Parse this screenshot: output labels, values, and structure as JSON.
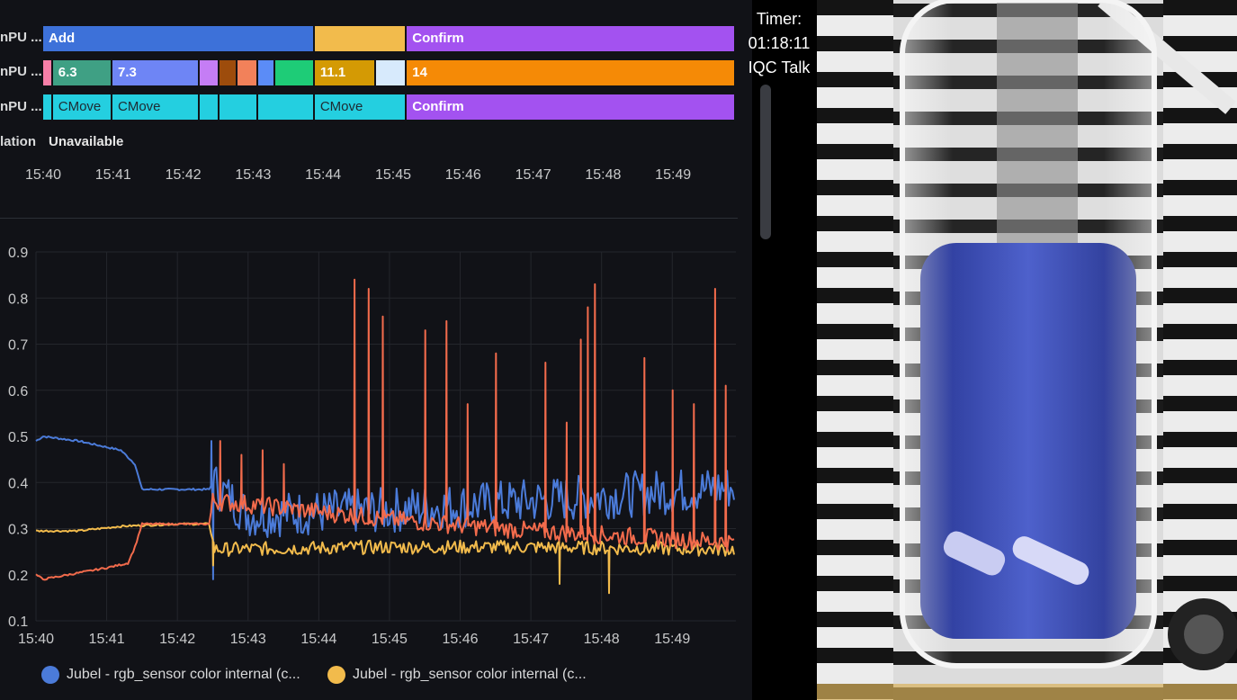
{
  "state_rows": [
    {
      "label": "nPU ...",
      "segments": [
        {
          "start": 0,
          "end": 3.92,
          "color": "#3d71d9",
          "text": ""
        },
        {
          "start": 0,
          "end": 3.92,
          "color": "#3d71d9",
          "text": "Add"
        },
        {
          "start": 3.92,
          "end": 5.25,
          "color": "#f2bb4c",
          "text": ""
        },
        {
          "start": 5.25,
          "end": 10.0,
          "color": "#a352f0",
          "text": "Confirm"
        }
      ]
    },
    {
      "label": "nPU ...",
      "segments": [
        {
          "start": 0,
          "end": 0.14,
          "color": "#f77fa8",
          "text": ""
        },
        {
          "start": 0.14,
          "end": 1.0,
          "color": "#3fa084",
          "text": "6.3"
        },
        {
          "start": 1.0,
          "end": 2.26,
          "color": "#6e85f5",
          "text": "7.3"
        },
        {
          "start": 2.26,
          "end": 2.54,
          "color": "#c57df5",
          "text": ""
        },
        {
          "start": 2.54,
          "end": 2.8,
          "color": "#9d4c0c",
          "text": ""
        },
        {
          "start": 2.8,
          "end": 3.1,
          "color": "#f2815a",
          "text": ""
        },
        {
          "start": 3.1,
          "end": 3.35,
          "color": "#5b8cf7",
          "text": ""
        },
        {
          "start": 3.35,
          "end": 3.92,
          "color": "#1ecc77",
          "text": ""
        },
        {
          "start": 3.92,
          "end": 4.8,
          "color": "#d49a04",
          "text": "11.1"
        },
        {
          "start": 4.8,
          "end": 5.25,
          "color": "#d7eafc",
          "text": ""
        },
        {
          "start": 5.25,
          "end": 10.0,
          "color": "#f58a06",
          "text": "14"
        }
      ]
    },
    {
      "label": "nPU ...",
      "segments": [
        {
          "start": 0,
          "end": 0.14,
          "color": "#24cfe0",
          "text": ""
        },
        {
          "start": 0.14,
          "end": 1.0,
          "color": "#24cfe0",
          "text": "CMove"
        },
        {
          "start": 1.0,
          "end": 2.26,
          "color": "#24cfe0",
          "text": "CMove"
        },
        {
          "start": 2.26,
          "end": 2.54,
          "color": "#24cfe0",
          "text": ""
        },
        {
          "start": 2.54,
          "end": 3.1,
          "color": "#24cfe0",
          "text": ""
        },
        {
          "start": 3.1,
          "end": 3.92,
          "color": "#24cfe0",
          "text": ""
        },
        {
          "start": 3.92,
          "end": 5.25,
          "color": "#24cfe0",
          "text": "CMove"
        },
        {
          "start": 5.25,
          "end": 10.0,
          "color": "#a352f0",
          "text": "Confirm"
        }
      ]
    }
  ],
  "lation_row": {
    "label": "lation",
    "value": "Unavailable"
  },
  "time_ticks": [
    "15:40",
    "15:41",
    "15:42",
    "15:43",
    "15:44",
    "15:45",
    "15:46",
    "15:47",
    "15:48",
    "15:49"
  ],
  "overlay": {
    "timer_label": "Timer:",
    "timer_value": "01:18:11",
    "talk_label": "IQC Talk"
  },
  "legend": [
    {
      "label": "Jubel - rgb_sensor color internal (c...",
      "color": "#4b7bd9"
    },
    {
      "label": "Jubel - rgb_sensor color internal (c...",
      "color": "#f2bb4c"
    }
  ],
  "chart_data": {
    "type": "line",
    "x_ticks": [
      "15:40",
      "15:41",
      "15:42",
      "15:43",
      "15:44",
      "15:45",
      "15:46",
      "15:47",
      "15:48",
      "15:49"
    ],
    "y_ticks": [
      "0.9",
      "0.8",
      "0.7",
      "0.6",
      "0.5",
      "0.4",
      "0.3",
      "0.2",
      "0.1"
    ],
    "ylim": [
      0.1,
      0.9
    ],
    "xlim_minutes": [
      0,
      9.9
    ],
    "grid": true,
    "legend_position": "bottom-left",
    "series": [
      {
        "color": "#4b7bd9",
        "base": [
          [
            0,
            0.49
          ],
          [
            0.1,
            0.5
          ],
          [
            0.6,
            0.49
          ],
          [
            1.2,
            0.47
          ],
          [
            1.4,
            0.44
          ],
          [
            1.5,
            0.385
          ],
          [
            2.0,
            0.385
          ],
          [
            2.45,
            0.385
          ],
          [
            2.5,
            0.4
          ],
          [
            3.0,
            0.33
          ],
          [
            5.0,
            0.34
          ],
          [
            7.0,
            0.36
          ],
          [
            9.9,
            0.39
          ]
        ],
        "noise": 0.05,
        "spikes": [
          [
            2.48,
            0.49
          ],
          [
            2.49,
            0.19
          ]
        ]
      },
      {
        "color": "#f2bb4c",
        "base": [
          [
            0,
            0.295
          ],
          [
            0.6,
            0.295
          ],
          [
            1.2,
            0.305
          ],
          [
            2.0,
            0.31
          ],
          [
            2.45,
            0.31
          ],
          [
            2.52,
            0.255
          ],
          [
            5.0,
            0.26
          ],
          [
            7.0,
            0.26
          ],
          [
            9.9,
            0.255
          ]
        ],
        "noise": 0.015,
        "spikes": [
          [
            2.5,
            0.22
          ],
          [
            8.1,
            0.16
          ],
          [
            7.4,
            0.18
          ]
        ]
      },
      {
        "color": "#f26b4c",
        "base": [
          [
            0,
            0.2
          ],
          [
            0.1,
            0.19
          ],
          [
            1.0,
            0.215
          ],
          [
            1.3,
            0.225
          ],
          [
            1.4,
            0.26
          ],
          [
            1.5,
            0.31
          ],
          [
            2.45,
            0.31
          ],
          [
            2.5,
            0.36
          ],
          [
            3.2,
            0.35
          ],
          [
            5.0,
            0.32
          ],
          [
            7.0,
            0.295
          ],
          [
            9.9,
            0.27
          ]
        ],
        "noise": 0.02,
        "spikes": [
          [
            2.6,
            0.49
          ],
          [
            2.9,
            0.46
          ],
          [
            3.2,
            0.47
          ],
          [
            3.5,
            0.44
          ],
          [
            4.5,
            0.84
          ],
          [
            4.7,
            0.82
          ],
          [
            4.9,
            0.76
          ],
          [
            5.5,
            0.73
          ],
          [
            5.8,
            0.75
          ],
          [
            6.1,
            0.57
          ],
          [
            6.5,
            0.68
          ],
          [
            7.2,
            0.66
          ],
          [
            7.5,
            0.53
          ],
          [
            7.7,
            0.71
          ],
          [
            7.8,
            0.78
          ],
          [
            7.9,
            0.83
          ],
          [
            8.6,
            0.67
          ],
          [
            9.0,
            0.6
          ],
          [
            9.3,
            0.57
          ],
          [
            9.6,
            0.82
          ],
          [
            9.75,
            0.61
          ]
        ]
      }
    ]
  }
}
